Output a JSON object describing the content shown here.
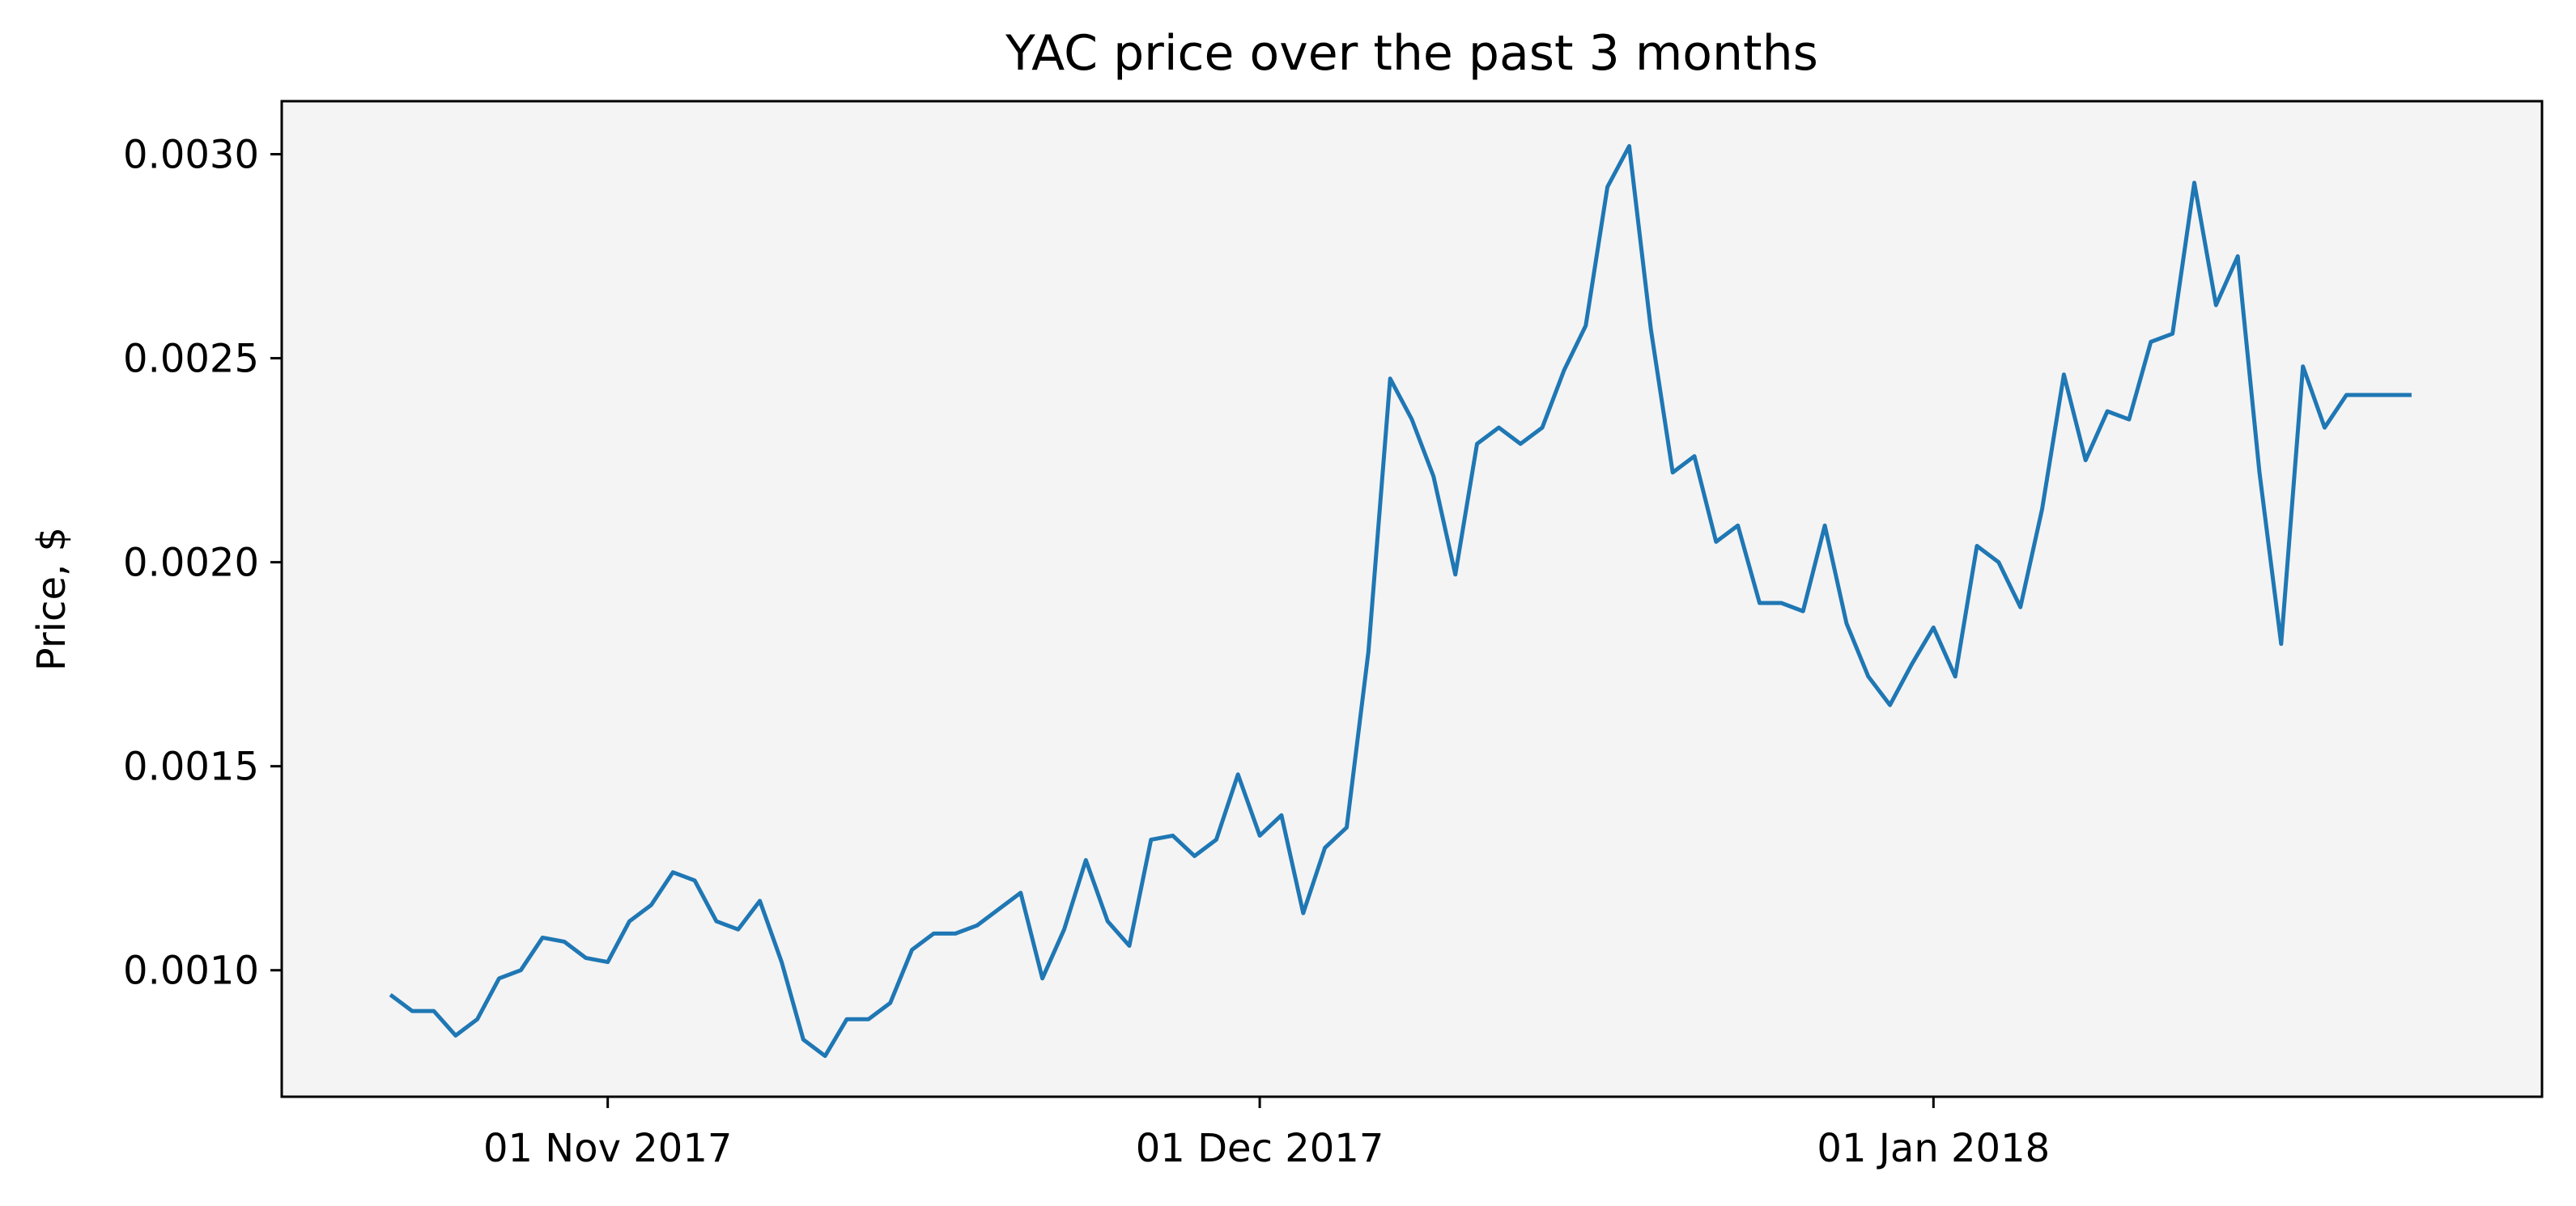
{
  "chart_data": {
    "type": "line",
    "title": "YAC price over the past 3 months",
    "xlabel": "",
    "ylabel": "Price, $",
    "x_type": "date",
    "xlim": [
      "2017-10-17",
      "2018-01-29"
    ],
    "ylim": [
      0.00069,
      0.00313
    ],
    "background": "#f4f4f4",
    "grid": false,
    "x_ticks": [
      {
        "date": "2017-11-01",
        "label": "01 Nov 2017"
      },
      {
        "date": "2017-12-01",
        "label": "01 Dec 2017"
      },
      {
        "date": "2018-01-01",
        "label": "01 Jan 2018"
      }
    ],
    "y_ticks": [
      {
        "value": 0.001,
        "label": "0.0010"
      },
      {
        "value": 0.0015,
        "label": "0.0015"
      },
      {
        "value": 0.002,
        "label": "0.0020"
      },
      {
        "value": 0.0025,
        "label": "0.0025"
      },
      {
        "value": 0.003,
        "label": "0.0030"
      }
    ],
    "series": [
      {
        "color": "#1f77b4",
        "x": [
          "2017-10-22",
          "2017-10-23",
          "2017-10-24",
          "2017-10-25",
          "2017-10-26",
          "2017-10-27",
          "2017-10-28",
          "2017-10-29",
          "2017-10-30",
          "2017-10-31",
          "2017-11-01",
          "2017-11-02",
          "2017-11-03",
          "2017-11-04",
          "2017-11-05",
          "2017-11-06",
          "2017-11-07",
          "2017-11-08",
          "2017-11-09",
          "2017-11-10",
          "2017-11-11",
          "2017-11-12",
          "2017-11-13",
          "2017-11-14",
          "2017-11-15",
          "2017-11-16",
          "2017-11-17",
          "2017-11-18",
          "2017-11-19",
          "2017-11-20",
          "2017-11-21",
          "2017-11-22",
          "2017-11-23",
          "2017-11-24",
          "2017-11-25",
          "2017-11-26",
          "2017-11-27",
          "2017-11-28",
          "2017-11-29",
          "2017-11-30",
          "2017-12-01",
          "2017-12-02",
          "2017-12-03",
          "2017-12-04",
          "2017-12-05",
          "2017-12-06",
          "2017-12-07",
          "2017-12-08",
          "2017-12-09",
          "2017-12-10",
          "2017-12-11",
          "2017-12-12",
          "2017-12-13",
          "2017-12-14",
          "2017-12-15",
          "2017-12-16",
          "2017-12-17",
          "2017-12-18",
          "2017-12-19",
          "2017-12-20",
          "2017-12-21",
          "2017-12-22",
          "2017-12-23",
          "2017-12-24",
          "2017-12-25",
          "2017-12-26",
          "2017-12-27",
          "2017-12-28",
          "2017-12-29",
          "2017-12-30",
          "2017-12-31",
          "2018-01-01",
          "2018-01-02",
          "2018-01-03",
          "2018-01-04",
          "2018-01-05",
          "2018-01-06",
          "2018-01-07",
          "2018-01-08",
          "2018-01-09",
          "2018-01-10",
          "2018-01-11",
          "2018-01-12",
          "2018-01-13",
          "2018-01-14",
          "2018-01-15",
          "2018-01-16",
          "2018-01-17",
          "2018-01-18",
          "2018-01-19",
          "2018-01-20",
          "2018-01-21",
          "2018-01-22",
          "2018-01-23"
        ],
        "values": [
          0.00094,
          0.0009,
          0.0009,
          0.00084,
          0.00088,
          0.00098,
          0.001,
          0.00108,
          0.00107,
          0.00103,
          0.00102,
          0.00112,
          0.00116,
          0.00124,
          0.00122,
          0.00112,
          0.0011,
          0.00117,
          0.00102,
          0.00083,
          0.00079,
          0.00088,
          0.00088,
          0.00092,
          0.00105,
          0.00109,
          0.00109,
          0.00111,
          0.00115,
          0.00119,
          0.00098,
          0.0011,
          0.00127,
          0.00112,
          0.00106,
          0.00132,
          0.00133,
          0.00128,
          0.00132,
          0.00148,
          0.00133,
          0.00138,
          0.00114,
          0.0013,
          0.00135,
          0.00178,
          0.00245,
          0.00235,
          0.00221,
          0.00197,
          0.00229,
          0.00233,
          0.00229,
          0.00233,
          0.00247,
          0.00258,
          0.00292,
          0.00302,
          0.00257,
          0.00222,
          0.00226,
          0.00205,
          0.00209,
          0.0019,
          0.0019,
          0.00188,
          0.00209,
          0.00185,
          0.00172,
          0.00165,
          0.00175,
          0.00184,
          0.00172,
          0.00204,
          0.002,
          0.00189,
          0.00213,
          0.00246,
          0.00225,
          0.00237,
          0.00235,
          0.00254,
          0.00256,
          0.00293,
          0.00263,
          0.00275,
          0.00222,
          0.0018,
          0.00248,
          0.00233,
          0.00241,
          0.00241,
          0.00241,
          0.00241
        ]
      }
    ]
  }
}
